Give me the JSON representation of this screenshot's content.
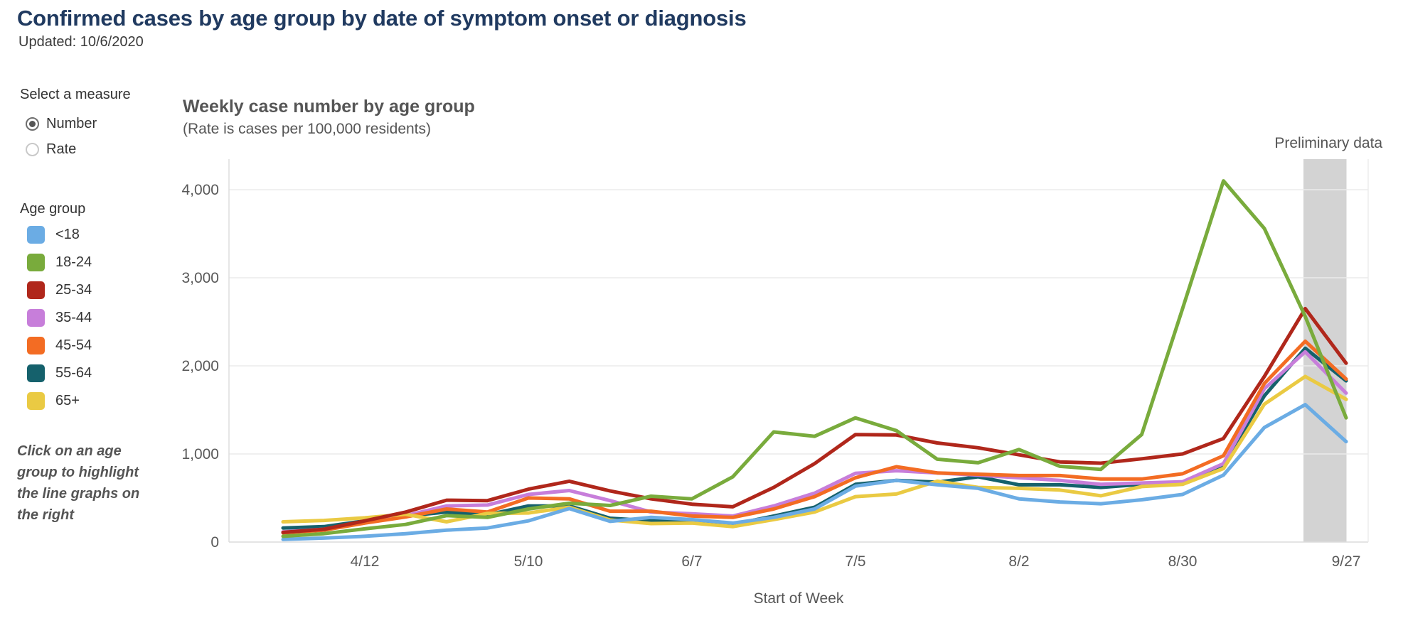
{
  "header": {
    "title": "Confirmed cases by age group by date of symptom onset or diagnosis",
    "updated": "Updated: 10/6/2020"
  },
  "controls": {
    "label": "Select a measure",
    "options": [
      {
        "label": "Number",
        "selected": true
      },
      {
        "label": "Rate",
        "selected": false
      }
    ]
  },
  "legend": {
    "title": "Age group",
    "note": "Click on an age group to highlight the line graphs on the right"
  },
  "chart_data": {
    "type": "line",
    "title": "Weekly case number by age group",
    "subtitle": "(Rate is cases per 100,000 residents)",
    "xlabel": "Start of Week",
    "ylabel": "",
    "grid": true,
    "legend_position": "left",
    "ylim": [
      0,
      4350
    ],
    "y_ticks": [
      0,
      1000,
      2000,
      3000,
      4000
    ],
    "x_tick_labels": [
      "4/12",
      "5/10",
      "6/7",
      "7/5",
      "8/2",
      "8/30",
      "9/27"
    ],
    "x_tick_indices": [
      2,
      6,
      10,
      14,
      18,
      22,
      26
    ],
    "weeks": [
      "3/29",
      "4/5",
      "4/12",
      "4/19",
      "4/26",
      "5/3",
      "5/10",
      "5/17",
      "5/24",
      "5/31",
      "6/7",
      "6/14",
      "6/21",
      "6/28",
      "7/5",
      "7/12",
      "7/19",
      "7/26",
      "8/2",
      "8/9",
      "8/16",
      "8/23",
      "8/30",
      "9/6",
      "9/13",
      "9/20",
      "9/27"
    ],
    "preliminary": {
      "label": "Preliminary data",
      "band_start_index": 25,
      "band_end_index": 26,
      "band_color": "#d3d3d3"
    },
    "series": [
      {
        "name": "<18",
        "color": "#6BACE4",
        "values": [
          30,
          45,
          65,
          95,
          135,
          160,
          240,
          380,
          235,
          280,
          255,
          215,
          280,
          375,
          635,
          700,
          650,
          610,
          490,
          455,
          435,
          480,
          540,
          760,
          1300,
          1560,
          1140
        ]
      },
      {
        "name": "18-24",
        "color": "#79AB3C",
        "values": [
          65,
          95,
          150,
          200,
          300,
          280,
          375,
          440,
          415,
          520,
          490,
          740,
          1250,
          1200,
          1410,
          1265,
          940,
          900,
          1050,
          860,
          825,
          1220,
          2650,
          4100,
          3560,
          2560,
          1410
        ]
      },
      {
        "name": "25-34",
        "color": "#B0271B",
        "values": [
          110,
          145,
          240,
          340,
          475,
          470,
          600,
          690,
          580,
          490,
          430,
          400,
          620,
          890,
          1220,
          1215,
          1125,
          1070,
          990,
          910,
          895,
          945,
          1000,
          1175,
          1880,
          2650,
          2030
        ]
      },
      {
        "name": "35-44",
        "color": "#C77EDA",
        "values": [
          115,
          145,
          225,
          300,
          410,
          420,
          540,
          585,
          470,
          340,
          320,
          295,
          410,
          555,
          780,
          810,
          785,
          760,
          730,
          700,
          655,
          670,
          685,
          890,
          1740,
          2160,
          1690
        ]
      },
      {
        "name": "45-54",
        "color": "#F36C23",
        "values": [
          105,
          135,
          215,
          285,
          375,
          340,
          500,
          490,
          350,
          350,
          295,
          280,
          375,
          515,
          730,
          855,
          785,
          770,
          755,
          755,
          715,
          715,
          775,
          980,
          1800,
          2280,
          1850
        ]
      },
      {
        "name": "55-64",
        "color": "#15616C",
        "values": [
          160,
          175,
          240,
          295,
          340,
          310,
          410,
          410,
          270,
          240,
          240,
          200,
          295,
          395,
          655,
          700,
          680,
          740,
          650,
          650,
          620,
          655,
          670,
          880,
          1660,
          2200,
          1830
        ]
      },
      {
        "name": "65+",
        "color": "#EACA43",
        "values": [
          230,
          245,
          275,
          315,
          230,
          325,
          330,
          395,
          250,
          210,
          215,
          175,
          255,
          340,
          515,
          545,
          690,
          620,
          610,
          590,
          525,
          630,
          655,
          835,
          1565,
          1880,
          1620
        ]
      }
    ],
    "draw_order": [
      "55-64",
      "35-44",
      "45-54",
      "65+",
      "25-34",
      "<18",
      "18-24"
    ]
  }
}
